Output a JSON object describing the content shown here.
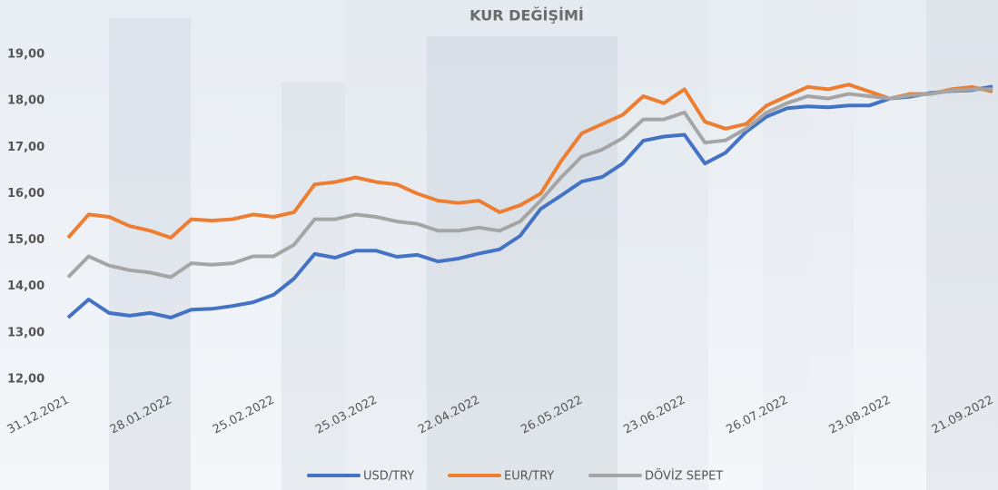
{
  "chart_data": {
    "type": "line",
    "title": "KUR DEĞİŞİMİ",
    "categories": [
      "31.12.2021",
      null,
      null,
      null,
      null,
      "28.01.2022",
      null,
      null,
      null,
      null,
      "25.02.2022",
      null,
      null,
      null,
      null,
      "25.03.2022",
      null,
      null,
      null,
      null,
      "22.04.2022",
      null,
      null,
      null,
      null,
      "26.05.2022",
      null,
      null,
      null,
      null,
      "23.06.2022",
      null,
      null,
      null,
      null,
      "26.07.2022",
      null,
      null,
      null,
      null,
      "23.08.2022",
      null,
      null,
      null,
      null,
      "21.09.2022"
    ],
    "series": [
      {
        "name": "USD/TRY",
        "color": "#4472c4",
        "values": [
          13.33,
          13.72,
          13.43,
          13.37,
          13.43,
          13.33,
          13.5,
          13.52,
          13.58,
          13.66,
          13.82,
          14.17,
          14.7,
          14.62,
          14.77,
          14.77,
          14.64,
          14.68,
          14.54,
          14.6,
          14.71,
          14.8,
          15.09,
          15.67,
          15.96,
          16.26,
          16.36,
          16.65,
          17.14,
          17.23,
          17.27,
          16.65,
          16.88,
          17.33,
          17.66,
          17.84,
          17.88,
          17.86,
          17.9,
          17.9,
          18.05,
          18.09,
          18.17,
          18.21,
          18.23,
          18.31
        ]
      },
      {
        "name": "EUR/TRY",
        "color": "#ed7d31",
        "values": [
          15.05,
          15.55,
          15.5,
          15.3,
          15.2,
          15.05,
          15.45,
          15.42,
          15.45,
          15.55,
          15.5,
          15.6,
          16.2,
          16.25,
          16.35,
          16.25,
          16.2,
          16.0,
          15.85,
          15.8,
          15.85,
          15.6,
          15.75,
          16.0,
          16.7,
          17.3,
          17.5,
          17.7,
          18.1,
          17.95,
          18.25,
          17.55,
          17.4,
          17.5,
          17.9,
          18.1,
          18.3,
          18.25,
          18.35,
          18.2,
          18.05,
          18.15,
          18.15,
          18.25,
          18.3,
          18.2
        ]
      },
      {
        "name": "DÖVİZ SEPET",
        "color": "#a5a5a5",
        "values": [
          14.2,
          14.65,
          14.45,
          14.35,
          14.3,
          14.2,
          14.5,
          14.47,
          14.5,
          14.65,
          14.65,
          14.9,
          15.45,
          15.45,
          15.55,
          15.5,
          15.4,
          15.35,
          15.2,
          15.2,
          15.27,
          15.2,
          15.4,
          15.85,
          16.35,
          16.8,
          16.95,
          17.2,
          17.6,
          17.6,
          17.75,
          17.1,
          17.15,
          17.4,
          17.75,
          17.95,
          18.1,
          18.05,
          18.15,
          18.1,
          18.05,
          18.12,
          18.15,
          18.22,
          18.25,
          18.25
        ]
      }
    ],
    "ylim": [
      12,
      19
    ],
    "yticks": [
      {
        "value": 12,
        "label": "12,00"
      },
      {
        "value": 13,
        "label": "13,00"
      },
      {
        "value": 14,
        "label": "14,00"
      },
      {
        "value": 15,
        "label": "15,00"
      },
      {
        "value": 16,
        "label": "16,00"
      },
      {
        "value": 17,
        "label": "17,00"
      },
      {
        "value": 18,
        "label": "18,00"
      },
      {
        "value": 19,
        "label": "19,00"
      }
    ],
    "grid": false,
    "legend": "bottom"
  }
}
